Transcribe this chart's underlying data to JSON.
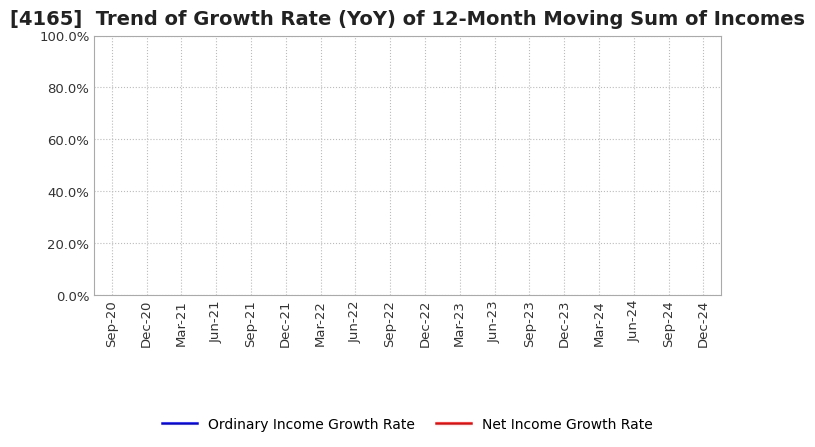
{
  "title": "[4165]  Trend of Growth Rate (YoY) of 12-Month Moving Sum of Incomes",
  "title_fontsize": 14,
  "title_color": "#222222",
  "background_color": "#ffffff",
  "plot_bg_color": "#ffffff",
  "grid_color": "#bbbbbb",
  "ylim": [
    0.0,
    1.0
  ],
  "yticks": [
    0.0,
    0.2,
    0.4,
    0.6,
    0.8,
    1.0
  ],
  "xtick_labels": [
    "Sep-20",
    "Dec-20",
    "Mar-21",
    "Jun-21",
    "Sep-21",
    "Dec-21",
    "Mar-22",
    "Jun-22",
    "Sep-22",
    "Dec-22",
    "Mar-23",
    "Jun-23",
    "Sep-23",
    "Dec-23",
    "Mar-24",
    "Jun-24",
    "Sep-24",
    "Dec-24"
  ],
  "ordinary_income_color": "#0000ff",
  "net_income_color": "#ff0000",
  "ordinary_income_label": "Ordinary Income Growth Rate",
  "net_income_label": "Net Income Growth Rate",
  "legend_fontsize": 10,
  "axis_fontsize": 9.5
}
